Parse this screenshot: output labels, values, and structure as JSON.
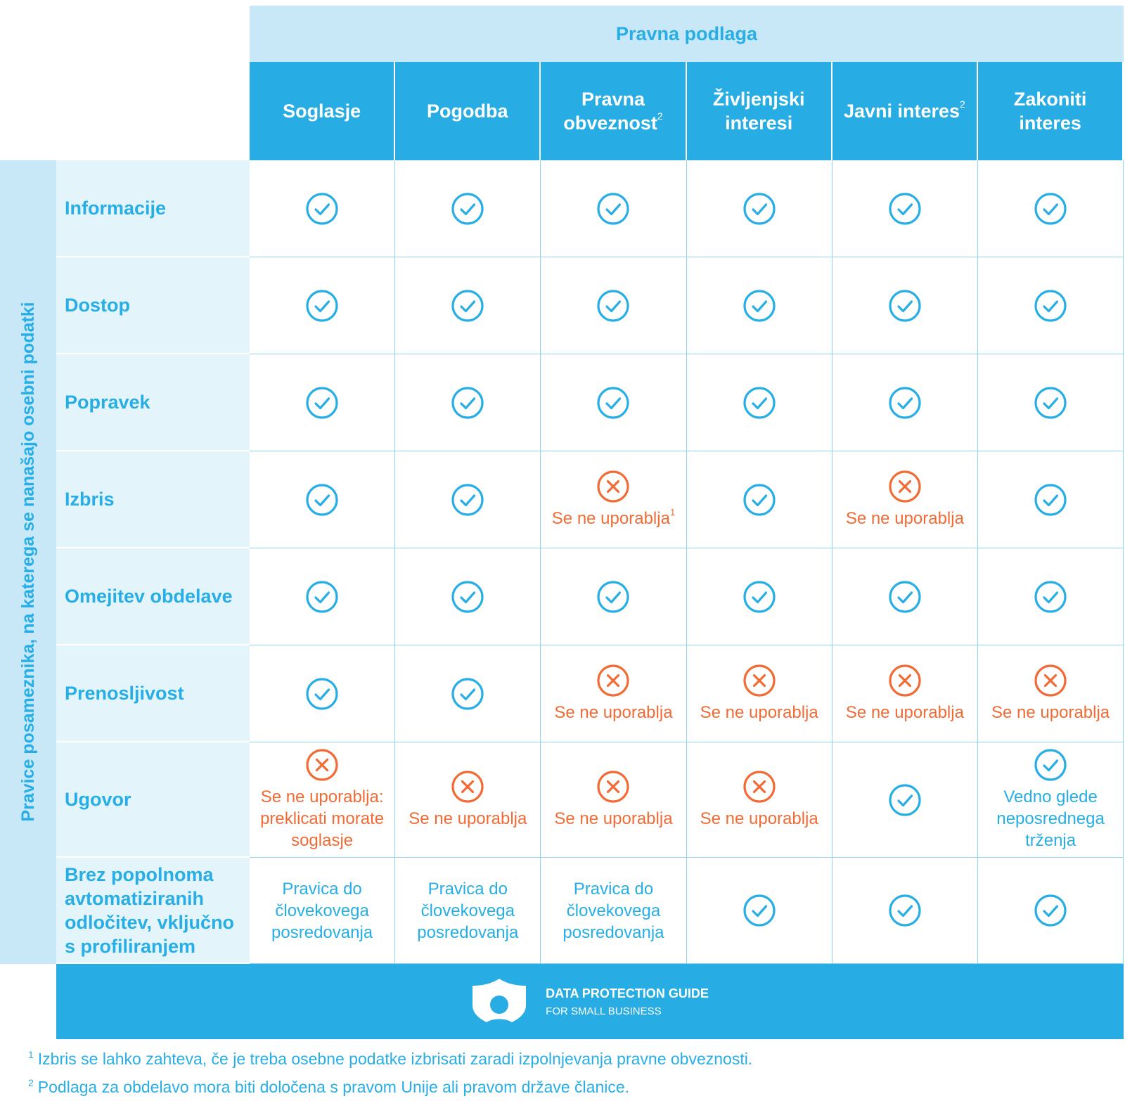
{
  "header": {
    "title": "Pravna podlaga"
  },
  "side_label": "Pravice posameznika, na katerega se nanašajo osebni podatki",
  "columns": [
    {
      "label": "Soglasje",
      "sup": ""
    },
    {
      "label": "Pogodba",
      "sup": ""
    },
    {
      "label": "Pravna obveznost",
      "sup": "2"
    },
    {
      "label": "Življenjski interesi",
      "sup": ""
    },
    {
      "label": "Javni interes",
      "sup": "2"
    },
    {
      "label": "Zakoniti interes",
      "sup": ""
    }
  ],
  "rows": [
    {
      "label": "Informacije",
      "cells": [
        {
          "icon": "check"
        },
        {
          "icon": "check"
        },
        {
          "icon": "check"
        },
        {
          "icon": "check"
        },
        {
          "icon": "check"
        },
        {
          "icon": "check"
        }
      ]
    },
    {
      "label": "Dostop",
      "cells": [
        {
          "icon": "check"
        },
        {
          "icon": "check"
        },
        {
          "icon": "check"
        },
        {
          "icon": "check"
        },
        {
          "icon": "check"
        },
        {
          "icon": "check"
        }
      ]
    },
    {
      "label": "Popravek",
      "cells": [
        {
          "icon": "check"
        },
        {
          "icon": "check"
        },
        {
          "icon": "check"
        },
        {
          "icon": "check"
        },
        {
          "icon": "check"
        },
        {
          "icon": "check"
        }
      ]
    },
    {
      "label": "Izbris",
      "cells": [
        {
          "icon": "check"
        },
        {
          "icon": "check"
        },
        {
          "icon": "cross",
          "note": "Se ne uporablja",
          "sup": "1"
        },
        {
          "icon": "check"
        },
        {
          "icon": "cross",
          "note": "Se ne uporablja"
        },
        {
          "icon": "check"
        }
      ]
    },
    {
      "label": "Omejitev obdelave",
      "cells": [
        {
          "icon": "check"
        },
        {
          "icon": "check"
        },
        {
          "icon": "check"
        },
        {
          "icon": "check"
        },
        {
          "icon": "check"
        },
        {
          "icon": "check"
        }
      ]
    },
    {
      "label": "Prenosljivost",
      "cells": [
        {
          "icon": "check"
        },
        {
          "icon": "check"
        },
        {
          "icon": "cross",
          "note": "Se ne uporablja"
        },
        {
          "icon": "cross",
          "note": "Se ne uporablja"
        },
        {
          "icon": "cross",
          "note": "Se ne uporablja"
        },
        {
          "icon": "cross",
          "note": "Se ne uporablja"
        }
      ]
    },
    {
      "label": "Ugovor",
      "cells": [
        {
          "icon": "cross",
          "note": "Se ne uporablja: preklicati morate soglasje"
        },
        {
          "icon": "cross",
          "note": "Se ne uporablja"
        },
        {
          "icon": "cross",
          "note": "Se ne uporablja"
        },
        {
          "icon": "cross",
          "note": "Se ne uporablja"
        },
        {
          "icon": "check"
        },
        {
          "icon": "check",
          "note": "Vedno glede neposrednega trženja"
        }
      ]
    },
    {
      "label": "Brez popolnoma avtomatiziranih odločitev, vključno s profiliranjem",
      "cells": [
        {
          "text": "Pravica do človekovega posredovanja"
        },
        {
          "text": "Pravica do človekovega posredovanja"
        },
        {
          "text": "Pravica do človekovega posredovanja"
        },
        {
          "icon": "check"
        },
        {
          "icon": "check"
        },
        {
          "icon": "check"
        }
      ]
    }
  ],
  "footer": {
    "brand_line1": "DATA PROTECTION GUIDE",
    "brand_line2": "FOR SMALL BUSINESS",
    "logo_icon": "shield-person-icon"
  },
  "footnotes": [
    {
      "num": "1",
      "text": "Izbris se lahko zahteva, če je treba osebne podatke izbrisati zaradi izpolnjevanja pravne obveznosti."
    },
    {
      "num": "2",
      "text": "Podlaga za obdelavo mora biti določena s pravom Unije ali pravom države članice."
    }
  ],
  "colors": {
    "primary_blue": "#27ade4",
    "light_blue": "#c8e8f7",
    "row_label_bg": "#e4f4fb",
    "not_applicable": "#f26b35"
  }
}
